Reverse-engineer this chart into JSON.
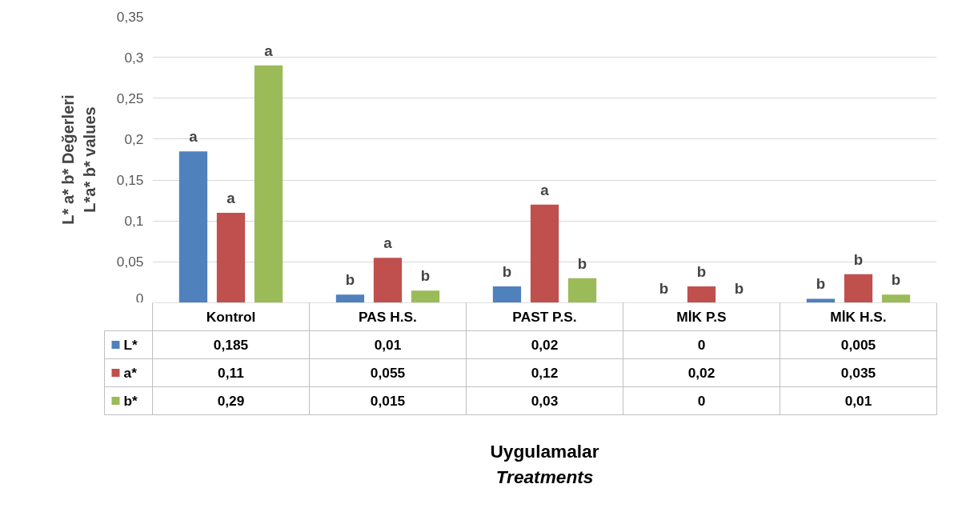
{
  "chart_data": {
    "type": "bar",
    "ylabel": "L* a* b* Değerleri\nL*a* b* values",
    "categories": [
      "Kontrol",
      "PAS H.S.",
      "PAST P.S.",
      "MİK P.S",
      "MİK H.S."
    ],
    "series": [
      {
        "name": "L*",
        "color": "#4f81bd",
        "values": [
          0.185,
          0.01,
          0.02,
          0,
          0.005
        ],
        "value_labels": [
          "0,185",
          "0,01",
          "0,02",
          "0",
          "0,005"
        ]
      },
      {
        "name": "a*",
        "color": "#c0504d",
        "values": [
          0.11,
          0.055,
          0.12,
          0.02,
          0.035
        ],
        "value_labels": [
          "0,11",
          "0,055",
          "0,12",
          "0,02",
          "0,035"
        ]
      },
      {
        "name": "b*",
        "color": "#9bbb59",
        "values": [
          0.29,
          0.015,
          0.03,
          0,
          0.01
        ],
        "value_labels": [
          "0,29",
          "0,015",
          "0,03",
          "0",
          "0,01"
        ]
      }
    ],
    "ylim": [
      0,
      0.35
    ],
    "yticks": [
      0,
      {
        "value": 0.05,
        "label": "0,05"
      },
      {
        "value": 0.1,
        "label": "0,1"
      },
      {
        "value": 0.15,
        "label": "0,15"
      },
      {
        "value": 0.2,
        "label": "0,2"
      },
      {
        "value": 0.25,
        "label": "0,25"
      },
      {
        "value": 0.3,
        "label": "0,3"
      },
      {
        "value": 0.35,
        "label": "0,35"
      }
    ],
    "grid": "y",
    "legend": "bottom",
    "annotations": [
      "a",
      "a",
      "a",
      "b",
      "a",
      "b",
      "b",
      "a",
      "b",
      "b",
      "b",
      "b",
      "b",
      "b",
      "b",
      "Uygulamalar\nTreatments"
    ]
  }
}
